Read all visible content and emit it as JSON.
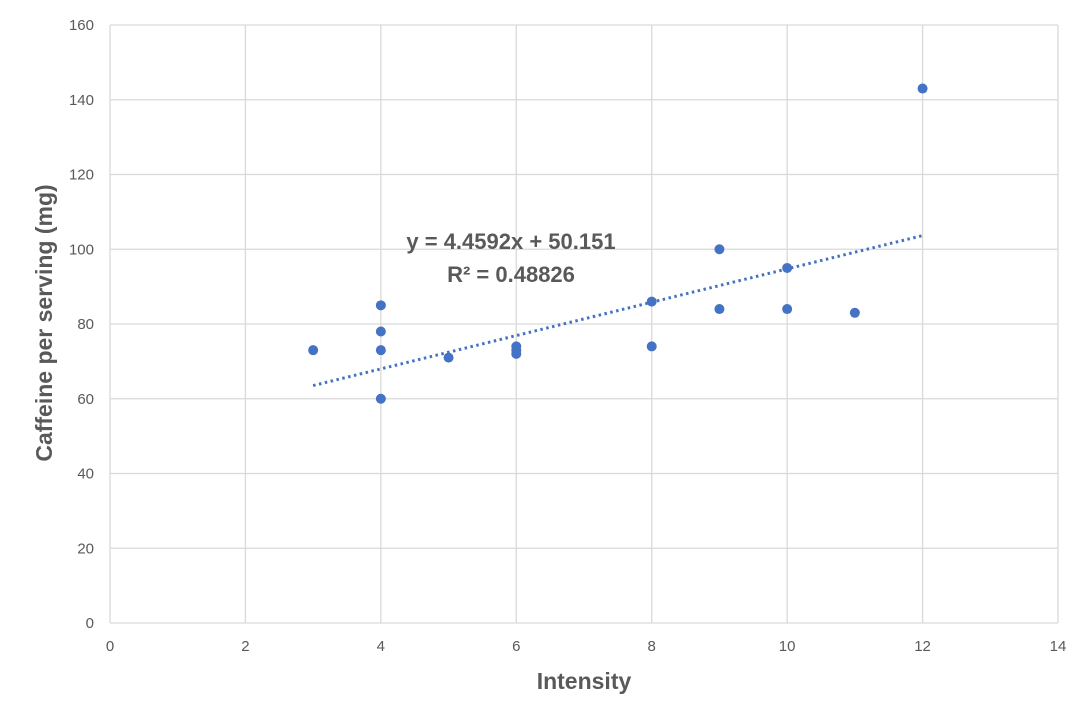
{
  "chart_data": {
    "type": "scatter",
    "title": "",
    "xlabel": "Intensity",
    "ylabel": "Caffeine per serving (mg)",
    "xlim": [
      0,
      14
    ],
    "ylim": [
      0,
      160
    ],
    "x_ticks": [
      0,
      2,
      4,
      6,
      8,
      10,
      12,
      14
    ],
    "y_ticks": [
      0,
      20,
      40,
      60,
      80,
      100,
      120,
      140,
      160
    ],
    "grid": true,
    "legend": "none",
    "marker_color": "#4472c4",
    "series": [
      {
        "points": [
          {
            "x": 3,
            "y": 73
          },
          {
            "x": 4,
            "y": 85
          },
          {
            "x": 4,
            "y": 78
          },
          {
            "x": 4,
            "y": 73
          },
          {
            "x": 4,
            "y": 60
          },
          {
            "x": 5,
            "y": 71
          },
          {
            "x": 6,
            "y": 74
          },
          {
            "x": 6,
            "y": 73
          },
          {
            "x": 6,
            "y": 72
          },
          {
            "x": 8,
            "y": 86
          },
          {
            "x": 8,
            "y": 74
          },
          {
            "x": 9,
            "y": 100
          },
          {
            "x": 9,
            "y": 84
          },
          {
            "x": 10,
            "y": 95
          },
          {
            "x": 10,
            "y": 84
          },
          {
            "x": 11,
            "y": 83
          },
          {
            "x": 12,
            "y": 143
          }
        ]
      }
    ],
    "trendline": {
      "type": "linear",
      "style": "dotted",
      "slope": 4.4592,
      "intercept": 50.151,
      "x_range": [
        3,
        12
      ],
      "equation_label": "y = 4.4592x + 50.151",
      "r2_label": "R² = 0.48826"
    }
  }
}
